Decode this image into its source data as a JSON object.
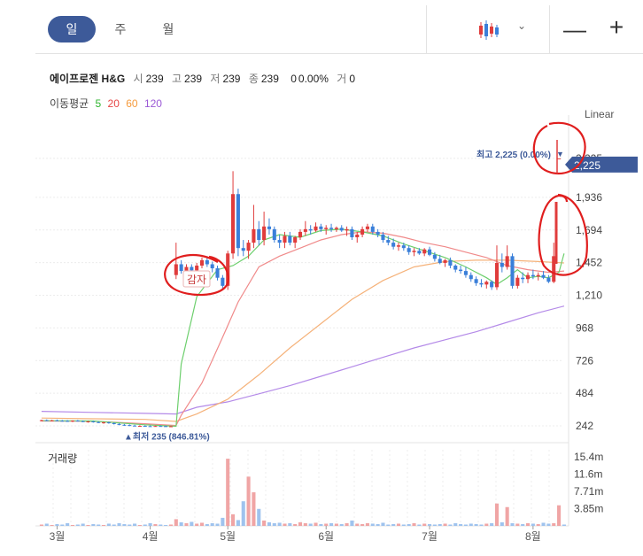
{
  "periods": [
    "일",
    "주",
    "월"
  ],
  "active_period": "일",
  "toolbar": {
    "minus": "—",
    "plus": "+",
    "chevron": "⌄",
    "chart_type_icon": "candlestick-icon"
  },
  "stock": {
    "name": "에이프로젠 H&G",
    "open_label": "시",
    "open": "239",
    "high_label": "고",
    "high": "239",
    "low_label": "저",
    "low": "239",
    "close_label": "종",
    "close": "239",
    "change": "0",
    "change_pct": "0.00%",
    "volume_label": "거",
    "volume": "0"
  },
  "moving_average": {
    "label": "이동평균",
    "periods": [
      "5",
      "20",
      "60",
      "120"
    ],
    "colors": [
      "#2fb52f",
      "#e64545",
      "#f59a3c",
      "#9b59d6"
    ]
  },
  "scale_mode": "Linear",
  "colors": {
    "up": "#e03c3c",
    "down": "#3a7fd9",
    "accent": "#3d5a99",
    "annotation": "#e01e1e"
  },
  "chart_data": {
    "type": "candlestick",
    "price_axis_ticks": [
      "2,225",
      "1,936",
      "1,694",
      "1,452",
      "1,210",
      "968",
      "726",
      "484",
      "242"
    ],
    "ylim": [
      170,
      2480
    ],
    "x_ticks": [
      "3월",
      "4월",
      "5월",
      "6월",
      "7월",
      "8월"
    ],
    "current_price_label": "2,225",
    "max_label": "최고 2,225 (0.00%)",
    "min_label": "최저 235 (846.81%)",
    "annotation_text": "감자",
    "volume_panel_label": "거래량",
    "volume_axis_ticks": [
      "15.4m",
      "11.6m",
      "7.71m",
      "3.85m"
    ],
    "candles": [
      {
        "o": 279,
        "h": 288,
        "l": 275,
        "c": 284
      },
      {
        "o": 284,
        "h": 290,
        "l": 278,
        "c": 281
      },
      {
        "o": 281,
        "h": 287,
        "l": 276,
        "c": 283
      },
      {
        "o": 283,
        "h": 289,
        "l": 278,
        "c": 280
      },
      {
        "o": 280,
        "h": 286,
        "l": 274,
        "c": 279
      },
      {
        "o": 279,
        "h": 285,
        "l": 272,
        "c": 276
      },
      {
        "o": 276,
        "h": 283,
        "l": 270,
        "c": 281
      },
      {
        "o": 281,
        "h": 286,
        "l": 274,
        "c": 277
      },
      {
        "o": 277,
        "h": 282,
        "l": 270,
        "c": 273
      },
      {
        "o": 273,
        "h": 279,
        "l": 266,
        "c": 275
      },
      {
        "o": 275,
        "h": 280,
        "l": 266,
        "c": 270
      },
      {
        "o": 270,
        "h": 276,
        "l": 262,
        "c": 266
      },
      {
        "o": 266,
        "h": 272,
        "l": 258,
        "c": 268
      },
      {
        "o": 268,
        "h": 273,
        "l": 258,
        "c": 262
      },
      {
        "o": 262,
        "h": 268,
        "l": 252,
        "c": 256
      },
      {
        "o": 256,
        "h": 262,
        "l": 246,
        "c": 250
      },
      {
        "o": 250,
        "h": 256,
        "l": 242,
        "c": 248
      },
      {
        "o": 248,
        "h": 253,
        "l": 240,
        "c": 244
      },
      {
        "o": 244,
        "h": 250,
        "l": 238,
        "c": 241
      },
      {
        "o": 241,
        "h": 247,
        "l": 235,
        "c": 242
      },
      {
        "o": 242,
        "h": 246,
        "l": 238,
        "c": 240
      },
      {
        "o": 240,
        "h": 245,
        "l": 236,
        "c": 239
      },
      {
        "o": 239,
        "h": 244,
        "l": 236,
        "c": 241
      },
      {
        "o": 241,
        "h": 245,
        "l": 237,
        "c": 240
      },
      {
        "o": 240,
        "h": 244,
        "l": 236,
        "c": 239
      },
      {
        "o": 239,
        "h": 243,
        "l": 236,
        "c": 239
      },
      {
        "o": 1360,
        "h": 1600,
        "l": 1330,
        "c": 1440
      },
      {
        "o": 1440,
        "h": 1470,
        "l": 1370,
        "c": 1390
      },
      {
        "o": 1390,
        "h": 1440,
        "l": 1360,
        "c": 1420
      },
      {
        "o": 1420,
        "h": 1440,
        "l": 1380,
        "c": 1395
      },
      {
        "o": 1395,
        "h": 1450,
        "l": 1380,
        "c": 1430
      },
      {
        "o": 1430,
        "h": 1490,
        "l": 1410,
        "c": 1470
      },
      {
        "o": 1470,
        "h": 1500,
        "l": 1420,
        "c": 1440
      },
      {
        "o": 1440,
        "h": 1460,
        "l": 1380,
        "c": 1410
      },
      {
        "o": 1410,
        "h": 1430,
        "l": 1320,
        "c": 1340
      },
      {
        "o": 1340,
        "h": 1360,
        "l": 1260,
        "c": 1280
      },
      {
        "o": 1280,
        "h": 1540,
        "l": 1250,
        "c": 1520
      },
      {
        "o": 1520,
        "h": 2130,
        "l": 1480,
        "c": 1960
      },
      {
        "o": 1960,
        "h": 2000,
        "l": 1500,
        "c": 1560
      },
      {
        "o": 1560,
        "h": 1620,
        "l": 1500,
        "c": 1540
      },
      {
        "o": 1540,
        "h": 1620,
        "l": 1480,
        "c": 1600
      },
      {
        "o": 1600,
        "h": 1880,
        "l": 1560,
        "c": 1700
      },
      {
        "o": 1700,
        "h": 1760,
        "l": 1580,
        "c": 1620
      },
      {
        "o": 1620,
        "h": 1830,
        "l": 1580,
        "c": 1720
      },
      {
        "o": 1720,
        "h": 1780,
        "l": 1660,
        "c": 1700
      },
      {
        "o": 1700,
        "h": 1720,
        "l": 1600,
        "c": 1620
      },
      {
        "o": 1620,
        "h": 1660,
        "l": 1560,
        "c": 1600
      },
      {
        "o": 1600,
        "h": 1680,
        "l": 1560,
        "c": 1650
      },
      {
        "o": 1650,
        "h": 1680,
        "l": 1580,
        "c": 1600
      },
      {
        "o": 1600,
        "h": 1650,
        "l": 1560,
        "c": 1640
      },
      {
        "o": 1640,
        "h": 1700,
        "l": 1620,
        "c": 1680
      },
      {
        "o": 1680,
        "h": 1760,
        "l": 1650,
        "c": 1700
      },
      {
        "o": 1700,
        "h": 1730,
        "l": 1660,
        "c": 1690
      },
      {
        "o": 1690,
        "h": 1750,
        "l": 1680,
        "c": 1720
      },
      {
        "o": 1720,
        "h": 1740,
        "l": 1680,
        "c": 1700
      },
      {
        "o": 1700,
        "h": 1730,
        "l": 1660,
        "c": 1710
      },
      {
        "o": 1710,
        "h": 1740,
        "l": 1680,
        "c": 1700
      },
      {
        "o": 1700,
        "h": 1720,
        "l": 1680,
        "c": 1710
      },
      {
        "o": 1710,
        "h": 1730,
        "l": 1680,
        "c": 1690
      },
      {
        "o": 1690,
        "h": 1720,
        "l": 1650,
        "c": 1700
      },
      {
        "o": 1700,
        "h": 1720,
        "l": 1620,
        "c": 1640
      },
      {
        "o": 1640,
        "h": 1680,
        "l": 1600,
        "c": 1660
      },
      {
        "o": 1660,
        "h": 1720,
        "l": 1640,
        "c": 1700
      },
      {
        "o": 1700,
        "h": 1740,
        "l": 1680,
        "c": 1720
      },
      {
        "o": 1720,
        "h": 1740,
        "l": 1660,
        "c": 1680
      },
      {
        "o": 1680,
        "h": 1700,
        "l": 1640,
        "c": 1660
      },
      {
        "o": 1660,
        "h": 1680,
        "l": 1600,
        "c": 1620
      },
      {
        "o": 1620,
        "h": 1650,
        "l": 1580,
        "c": 1600
      },
      {
        "o": 1600,
        "h": 1630,
        "l": 1550,
        "c": 1570
      },
      {
        "o": 1570,
        "h": 1600,
        "l": 1540,
        "c": 1580
      },
      {
        "o": 1580,
        "h": 1600,
        "l": 1540,
        "c": 1560
      },
      {
        "o": 1560,
        "h": 1580,
        "l": 1510,
        "c": 1530
      },
      {
        "o": 1530,
        "h": 1560,
        "l": 1500,
        "c": 1540
      },
      {
        "o": 1540,
        "h": 1560,
        "l": 1510,
        "c": 1520
      },
      {
        "o": 1520,
        "h": 1560,
        "l": 1500,
        "c": 1550
      },
      {
        "o": 1550,
        "h": 1570,
        "l": 1500,
        "c": 1510
      },
      {
        "o": 1510,
        "h": 1530,
        "l": 1460,
        "c": 1480
      },
      {
        "o": 1480,
        "h": 1510,
        "l": 1440,
        "c": 1450
      },
      {
        "o": 1450,
        "h": 1480,
        "l": 1420,
        "c": 1470
      },
      {
        "o": 1470,
        "h": 1490,
        "l": 1410,
        "c": 1430
      },
      {
        "o": 1430,
        "h": 1440,
        "l": 1380,
        "c": 1400
      },
      {
        "o": 1400,
        "h": 1430,
        "l": 1370,
        "c": 1390
      },
      {
        "o": 1390,
        "h": 1420,
        "l": 1340,
        "c": 1360
      },
      {
        "o": 1360,
        "h": 1380,
        "l": 1310,
        "c": 1330
      },
      {
        "o": 1330,
        "h": 1350,
        "l": 1280,
        "c": 1300
      },
      {
        "o": 1300,
        "h": 1330,
        "l": 1270,
        "c": 1290
      },
      {
        "o": 1290,
        "h": 1320,
        "l": 1260,
        "c": 1310
      },
      {
        "o": 1310,
        "h": 1320,
        "l": 1250,
        "c": 1270
      },
      {
        "o": 1270,
        "h": 1580,
        "l": 1250,
        "c": 1450
      },
      {
        "o": 1450,
        "h": 1520,
        "l": 1380,
        "c": 1420
      },
      {
        "o": 1420,
        "h": 1580,
        "l": 1400,
        "c": 1500
      },
      {
        "o": 1500,
        "h": 1520,
        "l": 1260,
        "c": 1280
      },
      {
        "o": 1280,
        "h": 1360,
        "l": 1260,
        "c": 1340
      },
      {
        "o": 1340,
        "h": 1380,
        "l": 1300,
        "c": 1330
      },
      {
        "o": 1330,
        "h": 1380,
        "l": 1300,
        "c": 1360
      },
      {
        "o": 1360,
        "h": 1400,
        "l": 1330,
        "c": 1350
      },
      {
        "o": 1350,
        "h": 1380,
        "l": 1320,
        "c": 1360
      },
      {
        "o": 1360,
        "h": 1390,
        "l": 1330,
        "c": 1340
      },
      {
        "o": 1340,
        "h": 1360,
        "l": 1300,
        "c": 1310
      },
      {
        "o": 1310,
        "h": 1600,
        "l": 1300,
        "c": 1500
      },
      {
        "o": 2225,
        "h": 2225,
        "l": 2225,
        "c": 2225
      }
    ],
    "ma5": [
      [
        0,
        280
      ],
      [
        10,
        278
      ],
      [
        20,
        250
      ],
      [
        26,
        239
      ],
      [
        27,
        700
      ],
      [
        30,
        1200
      ],
      [
        34,
        1400
      ],
      [
        37,
        1430
      ],
      [
        40,
        1500
      ],
      [
        43,
        1620
      ],
      [
        46,
        1660
      ],
      [
        50,
        1640
      ],
      [
        54,
        1690
      ],
      [
        58,
        1700
      ],
      [
        62,
        1680
      ],
      [
        66,
        1650
      ],
      [
        70,
        1590
      ],
      [
        74,
        1540
      ],
      [
        78,
        1490
      ],
      [
        82,
        1420
      ],
      [
        86,
        1340
      ],
      [
        88,
        1290
      ],
      [
        90,
        1340
      ],
      [
        92,
        1400
      ],
      [
        94,
        1340
      ],
      [
        96,
        1350
      ],
      [
        98,
        1340
      ],
      [
        100,
        1380
      ],
      [
        101,
        1520
      ]
    ],
    "ma20": [
      [
        0,
        278
      ],
      [
        10,
        276
      ],
      [
        20,
        258
      ],
      [
        26,
        245
      ],
      [
        27,
        320
      ],
      [
        31,
        560
      ],
      [
        35,
        900
      ],
      [
        38,
        1160
      ],
      [
        42,
        1420
      ],
      [
        46,
        1500
      ],
      [
        50,
        1560
      ],
      [
        54,
        1620
      ],
      [
        58,
        1660
      ],
      [
        62,
        1680
      ],
      [
        66,
        1670
      ],
      [
        70,
        1640
      ],
      [
        74,
        1600
      ],
      [
        78,
        1570
      ],
      [
        82,
        1530
      ],
      [
        86,
        1490
      ],
      [
        90,
        1430
      ],
      [
        94,
        1400
      ],
      [
        98,
        1380
      ],
      [
        101,
        1390
      ]
    ],
    "ma60": [
      [
        0,
        300
      ],
      [
        10,
        295
      ],
      [
        20,
        290
      ],
      [
        26,
        275
      ],
      [
        30,
        330
      ],
      [
        36,
        440
      ],
      [
        42,
        620
      ],
      [
        48,
        820
      ],
      [
        54,
        1000
      ],
      [
        60,
        1180
      ],
      [
        66,
        1320
      ],
      [
        72,
        1420
      ],
      [
        78,
        1460
      ],
      [
        84,
        1470
      ],
      [
        90,
        1470
      ],
      [
        96,
        1460
      ],
      [
        101,
        1450
      ]
    ],
    "ma120": [
      [
        0,
        350
      ],
      [
        10,
        342
      ],
      [
        20,
        335
      ],
      [
        26,
        330
      ],
      [
        30,
        380
      ],
      [
        36,
        420
      ],
      [
        42,
        480
      ],
      [
        48,
        540
      ],
      [
        54,
        610
      ],
      [
        60,
        680
      ],
      [
        66,
        750
      ],
      [
        72,
        820
      ],
      [
        78,
        880
      ],
      [
        84,
        940
      ],
      [
        90,
        1010
      ],
      [
        96,
        1080
      ],
      [
        101,
        1130
      ]
    ],
    "volume_m": [
      0.3,
      0.5,
      0.2,
      0.4,
      0.3,
      0.6,
      0.2,
      0.3,
      0.5,
      0.2,
      0.4,
      0.3,
      0.2,
      0.5,
      0.3,
      0.6,
      0.4,
      0.3,
      0.5,
      0.2,
      0.3,
      0.6,
      0.4,
      0.3,
      0.2,
      0.3,
      1.5,
      0.8,
      0.6,
      0.9,
      0.5,
      0.7,
      0.4,
      0.6,
      0.5,
      1.8,
      15.0,
      2.6,
      1.3,
      5.5,
      11.0,
      7.5,
      3.8,
      1.2,
      0.8,
      0.6,
      0.7,
      0.5,
      0.6,
      0.4,
      0.8,
      0.6,
      0.5,
      0.7,
      0.4,
      0.5,
      0.6,
      0.5,
      0.4,
      0.6,
      1.2,
      0.5,
      0.4,
      0.6,
      0.5,
      0.4,
      0.7,
      0.3,
      0.4,
      0.5,
      0.3,
      0.4,
      0.6,
      0.3,
      0.5,
      0.4,
      0.3,
      0.4,
      0.5,
      0.3,
      0.6,
      0.4,
      0.3,
      0.5,
      0.4,
      0.3,
      0.5,
      0.6,
      5.0,
      0.8,
      4.2,
      0.6,
      0.5,
      0.4,
      0.6,
      0.5,
      0.4,
      0.7,
      0.5,
      0.6,
      4.6,
      0.3
    ]
  }
}
